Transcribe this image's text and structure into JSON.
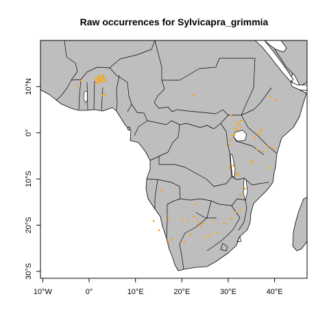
{
  "title": "Raw occurrences for Sylvicapra_grimmia",
  "colors": {
    "land": "#bebebe",
    "ocean": "#ffffff",
    "border": "#000000",
    "points": "#ffa500"
  },
  "chart_data": {
    "type": "scatter",
    "title": "Raw occurrences for Sylvicapra_grimmia",
    "xlim": [
      -10.5,
      47
    ],
    "ylim": [
      -31.5,
      20
    ],
    "x_ticks": [
      {
        "value": -10,
        "label": "10°W"
      },
      {
        "value": 0,
        "label": "0°"
      },
      {
        "value": 10,
        "label": "10°E"
      },
      {
        "value": 20,
        "label": "20°E"
      },
      {
        "value": 30,
        "label": "30°E"
      },
      {
        "value": 40,
        "label": "40°E"
      }
    ],
    "y_ticks": [
      {
        "value": 10,
        "label": "10°N"
      },
      {
        "value": 0,
        "label": "0°"
      },
      {
        "value": -10,
        "label": "10°S"
      },
      {
        "value": -20,
        "label": "20°S"
      },
      {
        "value": -30,
        "label": "30°S"
      }
    ],
    "grid": false,
    "series": [
      {
        "points": [
          [
            -1.8,
            11.3
          ],
          [
            -2.6,
            10.2
          ],
          [
            1.4,
            11.6
          ],
          [
            1.6,
            11.0
          ],
          [
            1.9,
            11.9
          ],
          [
            2.1,
            11.3
          ],
          [
            2.4,
            11.9
          ],
          [
            2.7,
            11.5
          ],
          [
            3.0,
            12.1
          ],
          [
            3.3,
            11.7
          ],
          [
            3.5,
            11.3
          ],
          [
            2.9,
            11.0
          ],
          [
            2.2,
            12.3
          ],
          [
            1.8,
            10.8
          ],
          [
            3.1,
            12.5
          ],
          [
            2.5,
            11.1
          ],
          [
            2.8,
            12.0
          ],
          [
            2.0,
            11.6
          ],
          [
            2.9,
            8.1
          ],
          [
            3.4,
            8.3
          ],
          [
            22.4,
            8.1
          ],
          [
            39.1,
            7.9
          ],
          [
            40.3,
            7.1
          ],
          [
            30.7,
            3.8
          ],
          [
            31.9,
            2.3
          ],
          [
            32.3,
            1.8
          ],
          [
            32.8,
            2.6
          ],
          [
            32.6,
            1.1
          ],
          [
            32.1,
            0.6
          ],
          [
            31.5,
            0.9
          ],
          [
            30.9,
            -0.6
          ],
          [
            30.4,
            -1.6
          ],
          [
            30.2,
            -2.6
          ],
          [
            31.3,
            -0.4
          ],
          [
            36.4,
            0.1
          ],
          [
            37.2,
            0.6
          ],
          [
            36.8,
            -0.4
          ],
          [
            35.8,
            -1.1
          ],
          [
            36.1,
            -3.6
          ],
          [
            34.9,
            -6.1
          ],
          [
            38.4,
            -2.9
          ],
          [
            39.6,
            -3.4
          ],
          [
            37.6,
            -4.1
          ],
          [
            31.1,
            -7.1
          ],
          [
            30.3,
            -7.6
          ],
          [
            35.2,
            -6.6
          ],
          [
            39.1,
            -7.6
          ],
          [
            32.1,
            -9.1
          ],
          [
            31.8,
            -8.8
          ],
          [
            33.6,
            -12.1
          ],
          [
            32.6,
            -13.4
          ],
          [
            15.6,
            -12.4
          ],
          [
            13.9,
            -19.1
          ],
          [
            15.1,
            -21.1
          ],
          [
            17.2,
            -18.6
          ],
          [
            17.9,
            -23.1
          ],
          [
            17.1,
            -23.6
          ],
          [
            20.1,
            -18.6
          ],
          [
            21.2,
            -19.1
          ],
          [
            22.6,
            -18.1
          ],
          [
            23.4,
            -19.1
          ],
          [
            24.1,
            -20.1
          ],
          [
            21.9,
            -22.1
          ],
          [
            20.6,
            -23.6
          ],
          [
            25.1,
            -22.6
          ],
          [
            26.1,
            -22.1
          ],
          [
            27.6,
            -21.6
          ],
          [
            24.6,
            -19.6
          ],
          [
            26.9,
            -19.1
          ],
          [
            29.1,
            -19.6
          ],
          [
            30.6,
            -18.6
          ],
          [
            32.6,
            -16.6
          ],
          [
            31.6,
            -17.2
          ],
          [
            22.9,
            -15.6
          ]
        ]
      }
    ]
  }
}
